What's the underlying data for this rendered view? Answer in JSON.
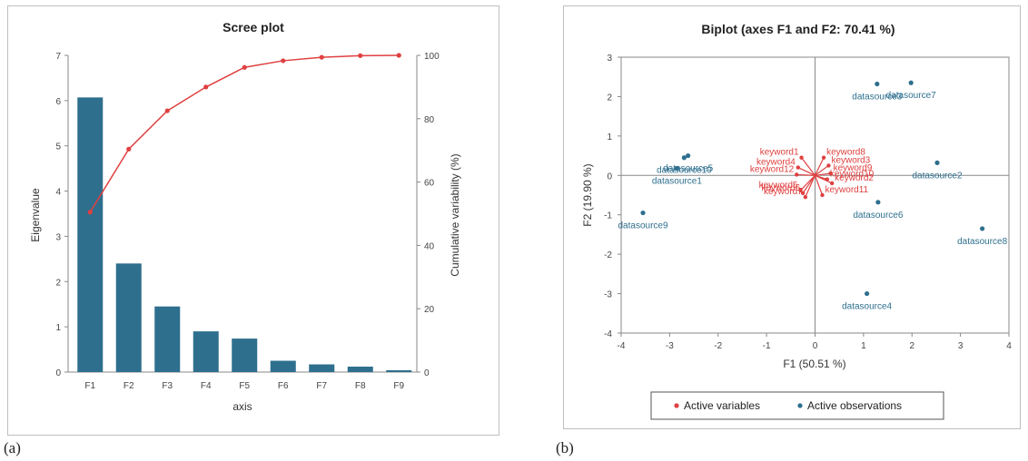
{
  "captions": {
    "a": "(a)",
    "b": "(b)"
  },
  "colors": {
    "bar": "#2e6f8e",
    "line": "#e04040",
    "obs": "#2e6f8e",
    "var": "#e04040"
  },
  "chart_data": [
    {
      "type": "bar",
      "title": "Scree plot",
      "xlabel": "axis",
      "ylabel": "Eigenvalue",
      "y2label": "Cumulative variability (%)",
      "categories": [
        "F1",
        "F2",
        "F3",
        "F4",
        "F5",
        "F6",
        "F7",
        "F8",
        "F9"
      ],
      "series": [
        {
          "name": "Eigenvalue",
          "values": [
            6.07,
            2.4,
            1.45,
            0.9,
            0.74,
            0.25,
            0.17,
            0.12,
            0.04
          ]
        },
        {
          "name": "Cumulative variability (%)",
          "axis": "right",
          "type": "line",
          "values": [
            50.5,
            70.4,
            82.5,
            90.0,
            96.2,
            98.3,
            99.4,
            99.9,
            100.0
          ]
        }
      ],
      "ylim": [
        0,
        7
      ],
      "y2lim": [
        0,
        100
      ],
      "yticks": [
        "0",
        "1",
        "2",
        "3",
        "4",
        "5",
        "6",
        "7"
      ],
      "y2ticks": [
        "0",
        "20",
        "40",
        "60",
        "80",
        "100"
      ],
      "grid": false
    },
    {
      "type": "scatter",
      "title": "Biplot (axes F1 and F2: 70.41 %)",
      "xlabel": "F1 (50.51 %)",
      "ylabel": "F2 (19.90 %)",
      "xlim": [
        -4,
        4
      ],
      "ylim": [
        -4,
        3
      ],
      "xticks": [
        "-4",
        "-3",
        "-2",
        "-1",
        "0",
        "1",
        "2",
        "3",
        "4"
      ],
      "yticks": [
        "3",
        "2",
        "1",
        "0",
        "-1",
        "-2",
        "-3",
        "-4"
      ],
      "legend": {
        "position": "bottom",
        "items": [
          {
            "label": "Active variables",
            "color": "#e04040"
          },
          {
            "label": "Active observations",
            "color": "#2e6f8e"
          }
        ]
      },
      "observations": [
        {
          "label": "datasource1",
          "x": -2.85,
          "y": 0.18
        },
        {
          "label": "datasource2",
          "x": 2.52,
          "y": 0.32
        },
        {
          "label": "datasource3",
          "x": 1.28,
          "y": 2.32
        },
        {
          "label": "datasource4",
          "x": 1.07,
          "y": -3.0
        },
        {
          "label": "datasource5",
          "x": -2.62,
          "y": 0.5
        },
        {
          "label": "datasource6",
          "x": 1.3,
          "y": -0.68
        },
        {
          "label": "datasource7",
          "x": 1.98,
          "y": 2.35
        },
        {
          "label": "datasource8",
          "x": 3.45,
          "y": -1.35
        },
        {
          "label": "datasource9",
          "x": -3.55,
          "y": -0.95
        },
        {
          "label": "datasource10",
          "x": -2.7,
          "y": 0.45
        }
      ],
      "variables": [
        {
          "label": "keyword1",
          "x": -0.28,
          "y": 0.45
        },
        {
          "label": "keyword2",
          "x": 0.35,
          "y": -0.2
        },
        {
          "label": "keyword3",
          "x": 0.28,
          "y": 0.25
        },
        {
          "label": "keyword4",
          "x": -0.35,
          "y": 0.2
        },
        {
          "label": "keyword5",
          "x": -0.3,
          "y": -0.38
        },
        {
          "label": "keyword6",
          "x": -0.25,
          "y": -0.45
        },
        {
          "label": "keyword7",
          "x": -0.2,
          "y": -0.55
        },
        {
          "label": "keyword8",
          "x": 0.18,
          "y": 0.45
        },
        {
          "label": "keyword9",
          "x": 0.32,
          "y": 0.05
        },
        {
          "label": "keyword10",
          "x": 0.25,
          "y": -0.1
        },
        {
          "label": "keyword11",
          "x": 0.15,
          "y": -0.5
        },
        {
          "label": "keyword12",
          "x": -0.38,
          "y": 0.02
        }
      ]
    }
  ]
}
